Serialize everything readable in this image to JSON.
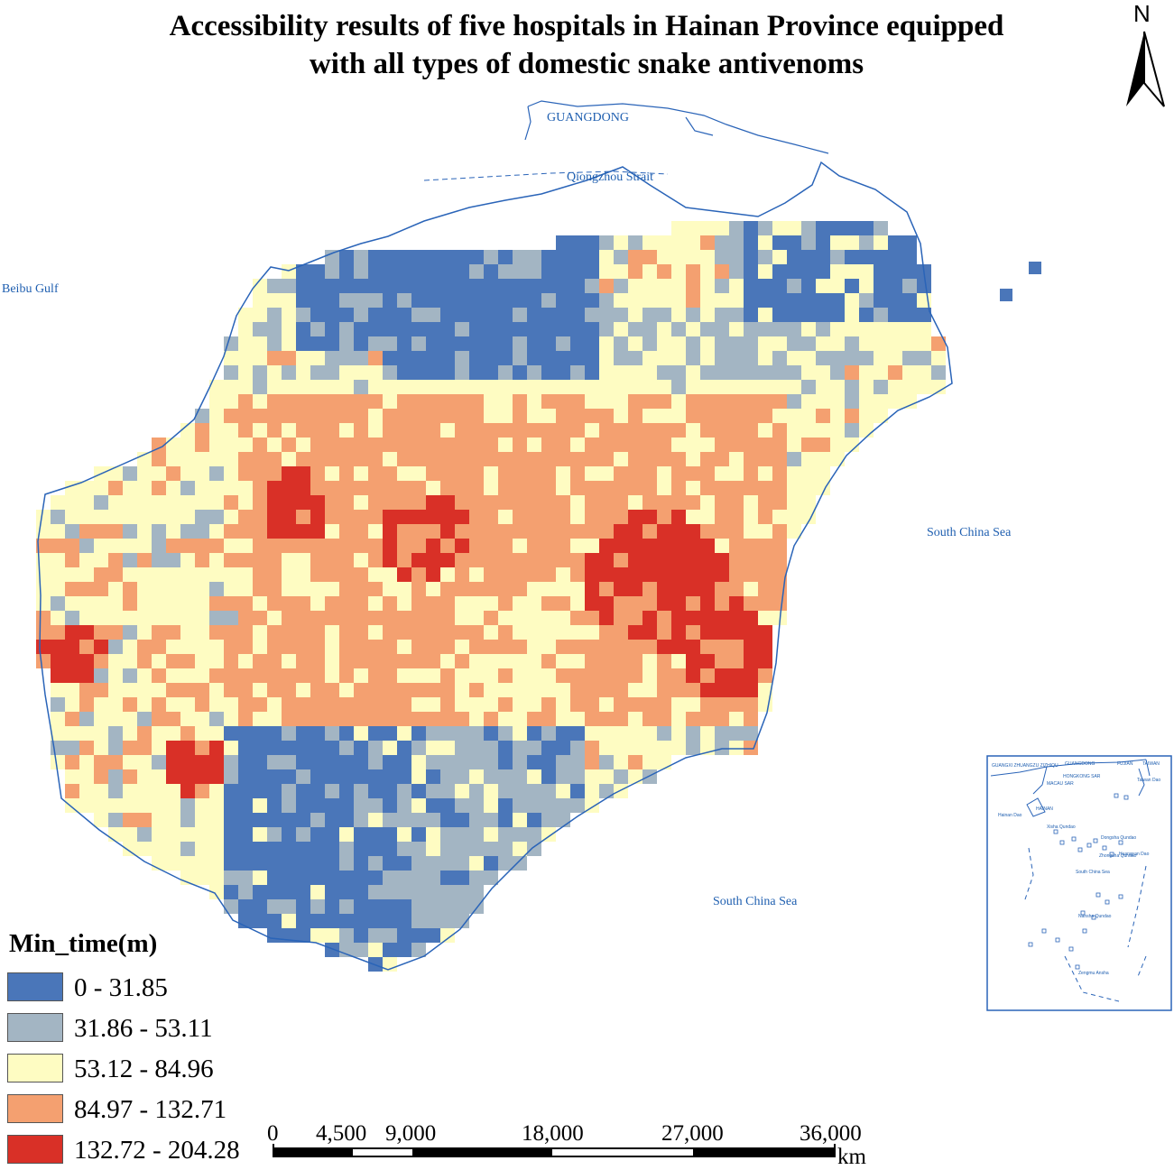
{
  "title": {
    "line1": "Accessibility results of five hospitals in Hainan Province equipped",
    "line2": "with all types of domestic snake antivenoms"
  },
  "north_arrow": {
    "letter": "N"
  },
  "place_labels": {
    "guangdong": "GUANGDONG",
    "qiongzhou_strait": "Qiongzhou Strait",
    "beibu_gulf": "Beibu Gulf",
    "south_china_sea_east": "South China Sea",
    "south_china_sea_south": "South China Sea"
  },
  "legend": {
    "title": "Min_time(m)",
    "classes": [
      {
        "label": "0 - 31.85",
        "color": "#4a76b9"
      },
      {
        "label": "31.86 - 53.11",
        "color": "#a3b5c3"
      },
      {
        "label": "53.12 - 84.96",
        "color": "#fefcc2"
      },
      {
        "label": "84.97 - 132.71",
        "color": "#f4a070"
      },
      {
        "label": "132.72 - 204.28",
        "color": "#d93027"
      }
    ]
  },
  "scale_bar": {
    "labels": [
      "0",
      "4,500",
      "9,000",
      "18,000",
      "27,000",
      "36,000"
    ],
    "unit": "km"
  },
  "inset_map": {
    "labels": [
      "GUANGXI ZHUANGZU ZIZHIQU",
      "GUANGDONG",
      "FUJIAN",
      "TAIWAN",
      "HONGKONG SAR",
      "MACAU SAR",
      "HAINAN",
      "Hainan Dao",
      "Xisha Qundao",
      "Dongsha Qundao",
      "Zhongsha Qundao",
      "Huangyan Dao",
      "South China Sea",
      "Nansha Qundao",
      "Zengmu Ansha",
      "Taiwan Dao"
    ]
  }
}
